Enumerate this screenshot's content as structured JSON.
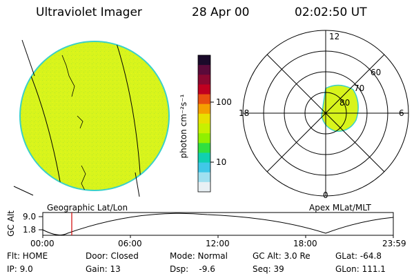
{
  "header": {
    "instrument": "Ultraviolet Imager",
    "date": "28 Apr 00",
    "time": "02:02:50 UT"
  },
  "colorbar": {
    "label": "photon cm⁻²s⁻¹",
    "ticks": [
      "100",
      "10"
    ],
    "colors": [
      "#1a0a2a",
      "#5a0a3a",
      "#8a0830",
      "#c00020",
      "#e85010",
      "#f5a000",
      "#e8e000",
      "#c8f000",
      "#90f000",
      "#30e040",
      "#10d0b0",
      "#40c8e8",
      "#a0e0f0",
      "#e8f0f4"
    ]
  },
  "geographic_panel": {
    "label": "Geographic Lat/Lon",
    "fill_color": "#d8f41c",
    "edge_color": "#3ad0c8"
  },
  "polar_panel": {
    "label": "Apex MLat/MLT",
    "mlt_labels": [
      "12",
      "18",
      "6",
      "0"
    ],
    "lat_labels": [
      "60",
      "70",
      "80"
    ]
  },
  "altitude_plot": {
    "ylabel": "GC Alt",
    "yticks": [
      "9.0",
      "1.8"
    ],
    "xticks": [
      "00:00",
      "06:00",
      "12:00",
      "18:00",
      "23:59"
    ],
    "marker_time": "02:02:50"
  },
  "footer": {
    "col1": [
      "Flt: HOME",
      "IP:  9.0"
    ],
    "col2": [
      "Door: Closed",
      "Gain: 13"
    ],
    "col3": [
      "Mode: Normal",
      "Dsp:    -9.6"
    ],
    "col4": [
      "GC Alt: 3.0 Re",
      "Seq: 39"
    ],
    "col5": [
      "GLat: -64.8",
      "GLon: 111.1"
    ]
  }
}
